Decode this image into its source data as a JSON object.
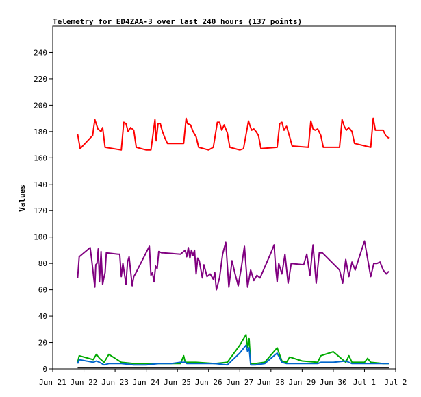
{
  "chart_data": {
    "type": "line",
    "title": "Telemetry for ED4ZAA-3 over last 240 hours (137 points)",
    "xlabel": "",
    "ylabel": "Values",
    "ylim": [
      0,
      260
    ],
    "xlim": [
      "2021-06-21",
      "2021-07-02"
    ],
    "yticks": [
      0,
      20,
      40,
      60,
      80,
      100,
      120,
      140,
      160,
      180,
      200,
      220,
      240
    ],
    "xticks": [
      "Jun 21",
      "Jun 22",
      "Jun 23",
      "Jun 24",
      "Jun 25",
      "Jun 26",
      "Jun 27",
      "Jun 28",
      "Jun 29",
      "Jun 30",
      "Jul 1",
      "Jul 2"
    ],
    "grid": false,
    "legend": "none",
    "series": [
      {
        "color": "#ff0000",
        "x": [
          21.8,
          21.88,
          22.28,
          22.35,
          22.45,
          22.55,
          22.6,
          22.68,
          23.2,
          23.28,
          23.35,
          23.42,
          23.5,
          23.6,
          23.68,
          24.0,
          24.15,
          24.28,
          24.32,
          24.38,
          24.45,
          24.52,
          24.6,
          24.68,
          25.2,
          25.28,
          25.32,
          25.42,
          25.5,
          25.6,
          25.68,
          26.0,
          26.15,
          26.28,
          26.35,
          26.42,
          26.5,
          26.6,
          26.68,
          27.0,
          27.12,
          27.28,
          27.32,
          27.38,
          27.45,
          27.52,
          27.6,
          27.68,
          28.2,
          28.28,
          28.35,
          28.42,
          28.5,
          28.6,
          28.68,
          29.2,
          29.28,
          29.35,
          29.42,
          29.5,
          29.6,
          29.68,
          30.2,
          30.28,
          30.35,
          30.42,
          30.5,
          30.6,
          30.68,
          31.2,
          31.28,
          31.35,
          31.42,
          31.5,
          31.6,
          31.68,
          31.78
        ],
        "values": [
          178,
          167,
          177,
          189,
          182,
          180,
          183,
          168,
          166,
          187,
          186,
          180,
          183,
          181,
          168,
          166,
          166,
          189,
          173,
          186,
          186,
          180,
          175,
          171,
          171,
          190,
          186,
          185,
          180,
          176,
          168,
          166,
          168,
          187,
          187,
          181,
          185,
          179,
          168,
          166,
          167,
          188,
          185,
          181,
          182,
          180,
          177,
          167,
          168,
          186,
          187,
          181,
          184,
          176,
          169,
          168,
          188,
          182,
          181,
          182,
          177,
          168,
          168,
          189,
          184,
          181,
          183,
          180,
          171,
          168,
          190,
          181,
          181,
          181,
          181,
          177,
          175
        ]
      },
      {
        "color": "#800080",
        "x": [
          21.8,
          21.85,
          22.15,
          22.2,
          22.25,
          22.35,
          22.38,
          22.42,
          22.46,
          22.5,
          22.55,
          22.6,
          22.65,
          22.68,
          22.72,
          23.1,
          23.15,
          23.2,
          23.25,
          23.3,
          23.35,
          23.4,
          23.45,
          23.55,
          23.6,
          23.65,
          23.95,
          24.1,
          24.15,
          24.2,
          24.25,
          24.3,
          24.35,
          24.4,
          24.5,
          24.55,
          25.1,
          25.25,
          25.3,
          25.35,
          25.4,
          25.45,
          25.5,
          25.55,
          25.6,
          25.65,
          25.7,
          25.8,
          25.85,
          25.95,
          26.05,
          26.15,
          26.2,
          26.25,
          26.35,
          26.45,
          26.55,
          26.65,
          26.75,
          26.85,
          26.95,
          27.05,
          27.15,
          27.25,
          27.35,
          27.45,
          27.55,
          27.65,
          28.0,
          28.1,
          28.15,
          28.2,
          28.25,
          28.35,
          28.45,
          28.55,
          28.65,
          29.05,
          29.15,
          29.25,
          29.35,
          29.45,
          29.55,
          29.65,
          30.2,
          30.3,
          30.4,
          30.5,
          30.6,
          30.7,
          31.0,
          31.2,
          31.3,
          31.4,
          31.5,
          31.6,
          31.7,
          31.78
        ],
        "values": [
          69,
          85,
          91,
          92,
          83,
          62,
          79,
          80,
          91,
          66,
          89,
          64,
          70,
          73,
          88,
          87,
          87,
          70,
          80,
          72,
          64,
          81,
          85,
          63,
          70,
          72,
          86,
          93,
          71,
          73,
          66,
          78,
          76,
          89,
          88,
          88,
          87,
          90,
          85,
          92,
          84,
          90,
          86,
          90,
          72,
          84,
          82,
          69,
          79,
          70,
          72,
          68,
          73,
          60,
          69,
          87,
          96,
          62,
          82,
          72,
          63,
          77,
          93,
          62,
          75,
          67,
          71,
          69,
          88,
          94,
          77,
          66,
          80,
          72,
          87,
          65,
          80,
          79,
          87,
          71,
          94,
          65,
          88,
          88,
          75,
          65,
          83,
          70,
          81,
          75,
          97,
          70,
          80,
          80,
          81,
          75,
          72,
          74
        ]
      },
      {
        "color": "#00aa00",
        "x": [
          21.8,
          21.85,
          22.3,
          22.4,
          22.5,
          22.65,
          22.8,
          23.2,
          23.6,
          24.0,
          24.4,
          24.8,
          25.1,
          25.2,
          25.25,
          25.3,
          25.6,
          26.2,
          26.6,
          27.0,
          27.2,
          27.25,
          27.3,
          27.35,
          27.5,
          27.8,
          28.2,
          28.35,
          28.5,
          28.6,
          29.0,
          29.5,
          29.6,
          30.0,
          30.4,
          30.5,
          30.6,
          31.0,
          31.1,
          31.2,
          31.6,
          31.78
        ],
        "values": [
          5,
          10,
          7,
          11,
          8,
          5,
          11,
          5,
          4,
          4,
          4,
          4,
          4,
          10,
          5,
          5,
          5,
          4,
          5,
          18,
          26,
          16,
          23,
          4,
          4,
          5,
          16,
          6,
          5,
          9,
          6,
          5,
          10,
          13,
          5,
          10,
          5,
          5,
          8,
          5,
          4,
          4
        ]
      },
      {
        "color": "#0066cc",
        "x": [
          21.8,
          21.85,
          22.3,
          22.4,
          22.5,
          22.65,
          22.8,
          23.2,
          23.6,
          24.0,
          24.4,
          24.8,
          25.1,
          25.2,
          25.25,
          25.3,
          25.6,
          26.2,
          26.6,
          27.0,
          27.2,
          27.25,
          27.3,
          27.35,
          27.5,
          27.8,
          28.2,
          28.35,
          28.5,
          28.6,
          29.0,
          29.5,
          29.6,
          30.0,
          30.4,
          30.5,
          30.6,
          31.0,
          31.1,
          31.2,
          31.6,
          31.78
        ],
        "values": [
          4,
          7,
          5,
          6,
          5,
          3,
          4,
          4,
          3,
          3,
          4,
          4,
          5,
          5,
          5,
          4,
          4,
          4,
          3,
          12,
          18,
          13,
          16,
          3,
          3,
          4,
          12,
          5,
          4,
          4,
          4,
          4,
          5,
          5,
          6,
          5,
          4,
          4,
          4,
          4,
          4,
          4
        ]
      },
      {
        "color": "#000000",
        "x": [
          21.8,
          31.78
        ],
        "values": [
          1,
          1
        ]
      }
    ]
  }
}
